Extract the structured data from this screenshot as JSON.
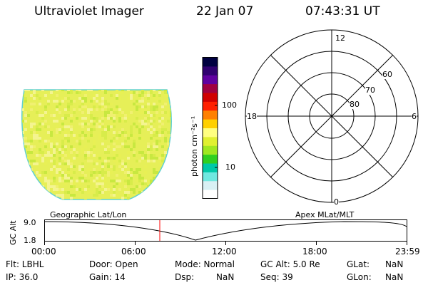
{
  "header": {
    "instrument": "Ultraviolet Imager",
    "date": "22 Jan 07",
    "time": "07:43:31 UT"
  },
  "colorbar": {
    "unit_label": "photon cm⁻²s⁻¹",
    "tick_labels": [
      "100",
      "10"
    ],
    "scale": "log",
    "colors": [
      "#ffffff",
      "#d8f0f4",
      "#70e8e0",
      "#00c8a8",
      "#30d020",
      "#a0e820",
      "#e0f030",
      "#ffff80",
      "#ffd000",
      "#ff8000",
      "#ff2000",
      "#d00000",
      "#a00040",
      "#6000a0",
      "#300070",
      "#000040"
    ]
  },
  "image_panel": {
    "fill_colors": [
      "#e8f055",
      "#d8ec4a",
      "#f0f070",
      "#c8e840",
      "#f4f490"
    ]
  },
  "polar_plot": {
    "top_label": "12",
    "bottom_label": "0",
    "left_label": "18",
    "right_label": "6",
    "ring_labels": [
      "60",
      "70",
      "80"
    ]
  },
  "timeline": {
    "left_title": "Geographic Lat/Lon",
    "right_title": "Apex MLat/MLT",
    "ylabel": "GC Alt",
    "y_ticks": [
      "9.0",
      "1.8"
    ],
    "x_ticks": [
      "00:00",
      "06:00",
      "12:00",
      "18:00",
      "23:59"
    ],
    "cursor_color": "#ff0000"
  },
  "info": {
    "flt": "Flt: LBHL",
    "ip": "IP: 36.0",
    "door": "Door: Open",
    "gain": "Gain: 14",
    "mode": "Mode: Normal",
    "dsp_label": "Dsp:",
    "dsp_value": "NaN",
    "gcalt": "GC Alt: 5.0 Re",
    "seq": "Seq: 39",
    "glat_label": "GLat:",
    "glat_value": "NaN",
    "glon_label": "GLon:",
    "glon_value": "NaN"
  }
}
